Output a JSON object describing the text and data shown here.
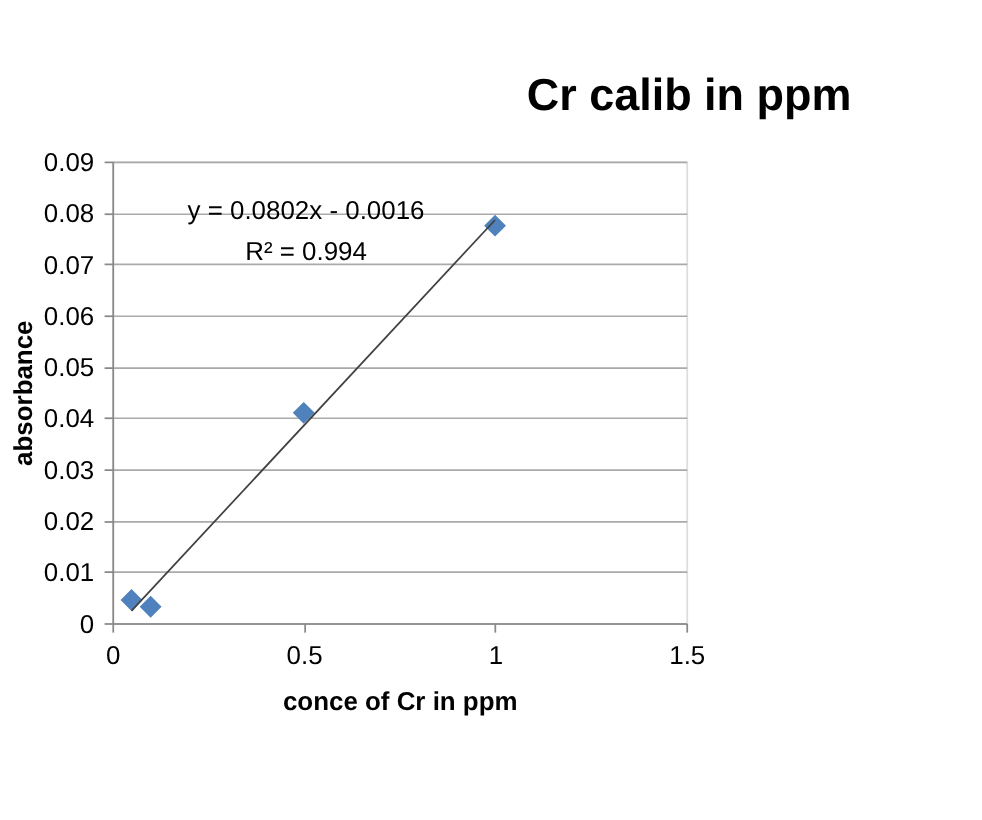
{
  "chart_data": {
    "type": "scatter",
    "title": "Cr calib in ppm",
    "xlabel": "conce of Cr in ppm",
    "ylabel": "absorbance",
    "series": [
      {
        "type": "scatter",
        "color": "#4f81bd",
        "x": [
          0.05,
          0.1,
          0.5,
          1
        ],
        "values": [
          0.0045,
          0.0032,
          0.041,
          0.0775
        ],
        "marker": "diamond"
      },
      {
        "type": "line",
        "color": "#404040",
        "x": [
          0.05,
          1
        ],
        "values": [
          0.0024,
          0.0786
        ],
        "marker": "none"
      }
    ],
    "annotations": [
      "y = 0.0802x - 0.0016",
      "R² = 0.994"
    ],
    "xlim": [
      0,
      1.5
    ],
    "xticks": [
      0,
      0.5,
      1,
      1.5
    ],
    "ylim": [
      0,
      0.09
    ],
    "yticks": [
      0,
      0.01,
      0.02,
      0.03,
      0.04,
      0.05,
      0.06,
      0.07,
      0.08,
      0.09
    ],
    "grid": "y"
  }
}
